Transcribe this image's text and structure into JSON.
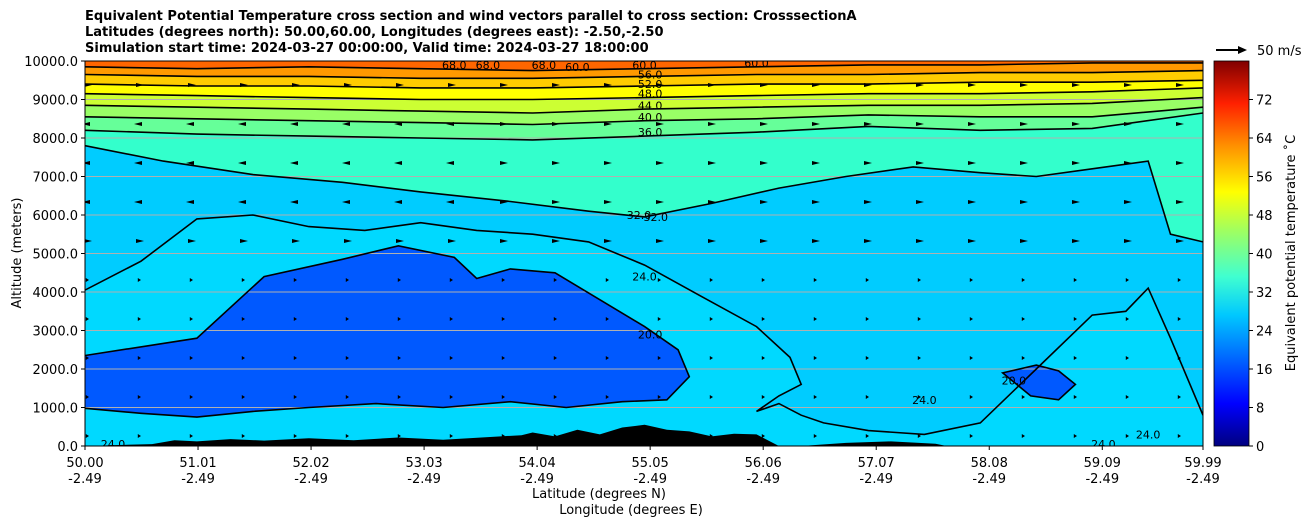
{
  "chart_data": {
    "type": "heatmap",
    "title_lines": [
      "Equivalent Potential Temperature cross section and wind vectors parallel to cross section: CrosssectionA",
      "Latitudes (degrees north): 50.00,60.00, Longitudes (degrees east): -2.50,-2.50",
      "Simulation start time: 2024-03-27 00:00:00, Valid time: 2024-03-27 18:00:00"
    ],
    "ylabel": "Altitude (meters)",
    "xlabel_1": "Latitude (degrees N)",
    "xlabel_2": "Longitude (degrees E)",
    "xlim": [
      50.0,
      59.99
    ],
    "ylim": [
      0,
      10000
    ],
    "x_ticks": [
      {
        "lat": "50.00",
        "lon": "-2.49"
      },
      {
        "lat": "51.01",
        "lon": "-2.49"
      },
      {
        "lat": "52.02",
        "lon": "-2.49"
      },
      {
        "lat": "53.03",
        "lon": "-2.49"
      },
      {
        "lat": "54.04",
        "lon": "-2.49"
      },
      {
        "lat": "55.05",
        "lon": "-2.49"
      },
      {
        "lat": "56.06",
        "lon": "-2.49"
      },
      {
        "lat": "57.07",
        "lon": "-2.49"
      },
      {
        "lat": "58.08",
        "lon": "-2.49"
      },
      {
        "lat": "59.09",
        "lon": "-2.49"
      },
      {
        "lat": "59.99",
        "lon": "-2.49"
      }
    ],
    "y_ticks": [
      "0.0",
      "1000.0",
      "2000.0",
      "3000.0",
      "4000.0",
      "5000.0",
      "6000.0",
      "7000.0",
      "8000.0",
      "9000.0",
      "10000.0"
    ],
    "grid": "horizontal",
    "colorbar": {
      "label": "Equivalent potential temperature ˚C",
      "range": [
        0,
        80
      ],
      "ticks": [
        "0",
        "8",
        "16",
        "24",
        "32",
        "40",
        "48",
        "56",
        "64",
        "72"
      ]
    },
    "quiver_key": "50 m/s",
    "contour_labels": [
      "68.0",
      "60.0",
      "56.0",
      "52.0",
      "48.0",
      "44.0",
      "40.0",
      "36.0",
      "32.0",
      "24.0",
      "20.0"
    ],
    "contours": [
      {
        "level": 20,
        "x": [
          50.0,
          51.0,
          51.6,
          52.3,
          52.8,
          53.3,
          53.5,
          53.8,
          54.2,
          54.6,
          55.0,
          55.3,
          55.4,
          55.2,
          54.8,
          54.3,
          53.8,
          53.2,
          52.6,
          52.0,
          51.5,
          51.0,
          50.5,
          50.0
        ],
        "y": [
          2350,
          2800,
          4400,
          4850,
          5200,
          4900,
          4350,
          4600,
          4500,
          3800,
          3100,
          2500,
          1800,
          1200,
          1150,
          1000,
          1150,
          1000,
          1100,
          1000,
          900,
          750,
          850,
          980
        ]
      },
      {
        "level": 20,
        "x": [
          58.2,
          58.5,
          58.7,
          58.85,
          58.7,
          58.45,
          58.2
        ],
        "y": [
          1900,
          2100,
          1950,
          1600,
          1200,
          1300,
          1900
        ]
      },
      {
        "level": 24,
        "x": [
          50.0,
          50.5,
          51.0,
          51.5,
          52.0,
          52.5,
          53.0,
          53.5,
          54.0,
          54.5,
          55.0,
          55.5,
          56.0,
          56.3,
          56.4,
          56.2,
          56.0,
          56.2,
          56.4,
          56.6,
          57.0,
          57.5,
          58.0,
          58.5,
          59.0,
          59.3,
          59.5,
          59.7,
          59.99
        ],
        "y": [
          4050,
          4800,
          5900,
          6000,
          5700,
          5600,
          5800,
          5600,
          5500,
          5300,
          4700,
          3900,
          3100,
          2300,
          1600,
          1300,
          900,
          1100,
          800,
          600,
          400,
          300,
          600,
          2000,
          3400,
          3500,
          4100,
          2800,
          800
        ]
      },
      {
        "level": 32,
        "x": [
          50.0,
          50.7,
          51.5,
          52.3,
          53.0,
          53.8,
          54.5,
          55.0,
          55.6,
          56.2,
          56.8,
          57.4,
          58.0,
          58.5,
          59.0,
          59.5,
          59.7,
          59.99
        ],
        "y": [
          7800,
          7400,
          7050,
          6850,
          6600,
          6350,
          6100,
          5950,
          6300,
          6700,
          7000,
          7250,
          7100,
          7000,
          7200,
          7400,
          5500,
          5300
        ]
      },
      {
        "level": 36,
        "x": [
          50.0,
          51.0,
          52.0,
          53.0,
          54.0,
          55.0,
          56.0,
          57.0,
          58.0,
          59.0,
          59.99
        ],
        "y": [
          8200,
          8100,
          8050,
          8000,
          7950,
          8050,
          8150,
          8300,
          8200,
          8250,
          8650
        ]
      },
      {
        "level": 40,
        "x": [
          50.0,
          51.0,
          52.0,
          53.0,
          54.0,
          55.0,
          56.0,
          57.0,
          58.0,
          59.0,
          59.99
        ],
        "y": [
          8550,
          8500,
          8450,
          8400,
          8350,
          8450,
          8500,
          8600,
          8550,
          8550,
          8800
        ]
      },
      {
        "level": 44,
        "x": [
          50.0,
          51.0,
          52.0,
          53.0,
          54.0,
          55.0,
          56.0,
          57.0,
          58.0,
          59.0,
          59.99
        ],
        "y": [
          8850,
          8800,
          8750,
          8700,
          8650,
          8750,
          8800,
          8850,
          8850,
          8900,
          9050
        ]
      },
      {
        "level": 48,
        "x": [
          50.0,
          51.0,
          52.0,
          53.0,
          54.0,
          55.0,
          56.0,
          57.0,
          58.0,
          59.0,
          59.99
        ],
        "y": [
          9150,
          9100,
          9050,
          9000,
          9000,
          9050,
          9100,
          9150,
          9150,
          9200,
          9300
        ]
      },
      {
        "level": 52,
        "x": [
          50.0,
          51.0,
          52.0,
          53.0,
          54.0,
          55.0,
          56.0,
          57.0,
          58.0,
          59.0,
          59.99
        ],
        "y": [
          9400,
          9350,
          9350,
          9300,
          9300,
          9350,
          9400,
          9400,
          9450,
          9450,
          9500
        ]
      },
      {
        "level": 56,
        "x": [
          50.0,
          51.0,
          52.0,
          53.0,
          54.0,
          55.0,
          56.0,
          57.0,
          58.0,
          59.0,
          59.99
        ],
        "y": [
          9650,
          9600,
          9600,
          9550,
          9550,
          9600,
          9650,
          9650,
          9700,
          9700,
          9750
        ]
      },
      {
        "level": 60,
        "x": [
          50.0,
          51.0,
          52.0,
          53.0,
          54.0,
          55.0,
          56.0,
          57.0,
          58.0,
          59.0,
          59.99
        ],
        "y": [
          9850,
          9800,
          9850,
          9800,
          9750,
          9800,
          9850,
          9900,
          9900,
          9950,
          9950
        ]
      }
    ],
    "contour_label_positions": [
      {
        "text": "60.0",
        "x": 54.4,
        "y": 9850
      },
      {
        "text": "60.0",
        "x": 55.0,
        "y": 9900
      },
      {
        "text": "56.0",
        "x": 55.05,
        "y": 9650
      },
      {
        "text": "52.0",
        "x": 55.05,
        "y": 9400
      },
      {
        "text": "48.0",
        "x": 55.05,
        "y": 9150
      },
      {
        "text": "44.0",
        "x": 55.05,
        "y": 8850
      },
      {
        "text": "40.0",
        "x": 55.05,
        "y": 8550
      },
      {
        "text": "36.0",
        "x": 55.05,
        "y": 8150
      },
      {
        "text": "32.0",
        "x": 54.95,
        "y": 6000
      },
      {
        "text": "32.0",
        "x": 55.1,
        "y": 5950
      },
      {
        "text": "24.0",
        "x": 55.0,
        "y": 4400
      },
      {
        "text": "20.0",
        "x": 55.05,
        "y": 2900
      },
      {
        "text": "24.0",
        "x": 57.5,
        "y": 1200
      },
      {
        "text": "20.0",
        "x": 58.3,
        "y": 1700
      },
      {
        "text": "24.0",
        "x": 59.1,
        "y": 50
      },
      {
        "text": "24.0",
        "x": 59.5,
        "y": 300
      },
      {
        "text": "24.0",
        "x": 50.25,
        "y": 50
      },
      {
        "text": "68.0",
        "x": 53.3,
        "y": 9900
      },
      {
        "text": "68.0",
        "x": 53.6,
        "y": 9900
      },
      {
        "text": "68.0",
        "x": 54.1,
        "y": 9900
      },
      {
        "text": "60.0",
        "x": 56.0,
        "y": 9950
      }
    ],
    "terrain": {
      "x": [
        50.0,
        50.6,
        50.8,
        51.0,
        51.3,
        51.6,
        52.0,
        52.4,
        52.8,
        53.2,
        53.6,
        53.9,
        54.0,
        54.2,
        54.4,
        54.6,
        54.8,
        55.0,
        55.2,
        55.4,
        55.6,
        55.8,
        56.0,
        56.2,
        56.4,
        56.8,
        57.2,
        57.6,
        57.7,
        59.99
      ],
      "y": [
        0,
        50,
        150,
        120,
        180,
        140,
        200,
        150,
        220,
        160,
        230,
        280,
        350,
        250,
        420,
        300,
        480,
        550,
        420,
        380,
        250,
        320,
        300,
        0,
        0,
        80,
        120,
        60,
        0,
        0
      ]
    }
  }
}
